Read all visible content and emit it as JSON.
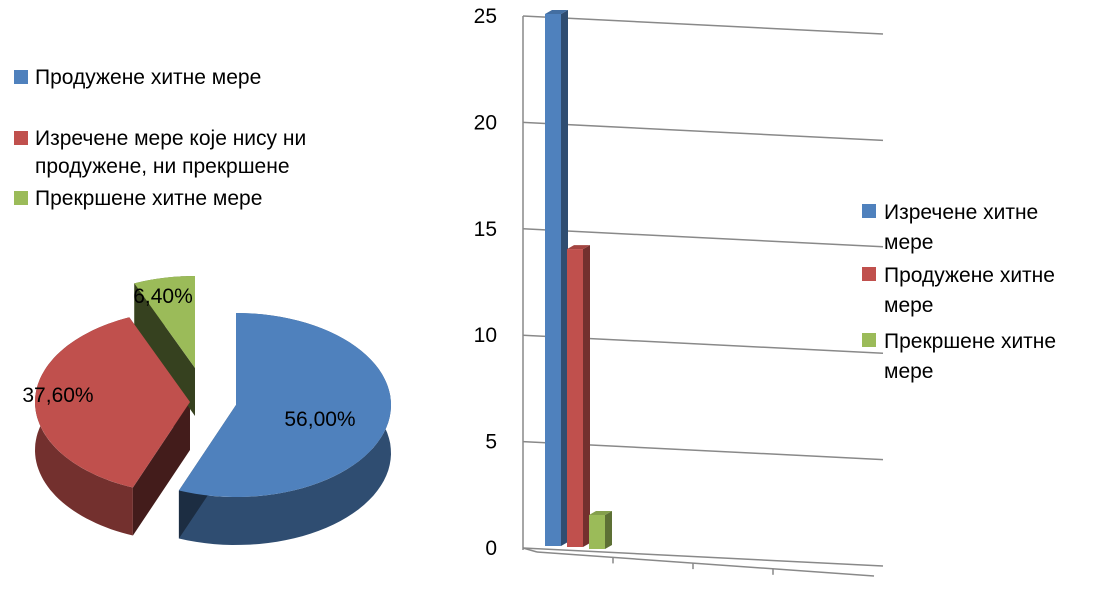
{
  "chart_data": [
    {
      "type": "pie",
      "title": "",
      "slices": [
        {
          "name": "Продужене хитне мере",
          "value": 56.0,
          "label": "56,00%",
          "color": "#4F81BD"
        },
        {
          "name": "Изречене мере које нису ни продужене, ни прекршене",
          "value": 37.6,
          "label": "37,60%",
          "color": "#C0504D"
        },
        {
          "name": "Прекршене хитне мере",
          "value": 6.4,
          "label": "6,40%",
          "color": "#9BBB59"
        }
      ],
      "legend": {
        "position": "top-left",
        "entries": [
          {
            "lines": [
              "Продужене хитне мере"
            ],
            "color": "#4F81BD"
          },
          {
            "lines": [
              "Изречене мере које нису ни",
              "продужене, ни прекршене"
            ],
            "color": "#C0504D"
          },
          {
            "lines": [
              "Прекршене хитне мере"
            ],
            "color": "#9BBB59"
          }
        ]
      }
    },
    {
      "type": "bar",
      "title": "",
      "xlabel": "",
      "ylabel": "",
      "ylim": [
        0,
        25
      ],
      "yticks": [
        "0",
        "5",
        "10",
        "15",
        "20",
        "25"
      ],
      "grid": true,
      "series": [
        {
          "name": "Изречене хитне мере",
          "values": [
            25
          ],
          "color": "#4F81BD"
        },
        {
          "name": "Продужене хитне мере",
          "values": [
            14
          ],
          "color": "#C0504D"
        },
        {
          "name": "Прекршене хитне мере",
          "values": [
            1.6
          ],
          "color": "#9BBB59"
        }
      ],
      "legend": {
        "position": "right",
        "entries": [
          {
            "lines": [
              "Изречене хитне",
              "мере"
            ],
            "color": "#4F81BD"
          },
          {
            "lines": [
              "Продужене хитне",
              "мере"
            ],
            "color": "#C0504D"
          },
          {
            "lines": [
              "Прекршене хитне",
              "мере"
            ],
            "color": "#9BBB59"
          }
        ]
      }
    }
  ]
}
